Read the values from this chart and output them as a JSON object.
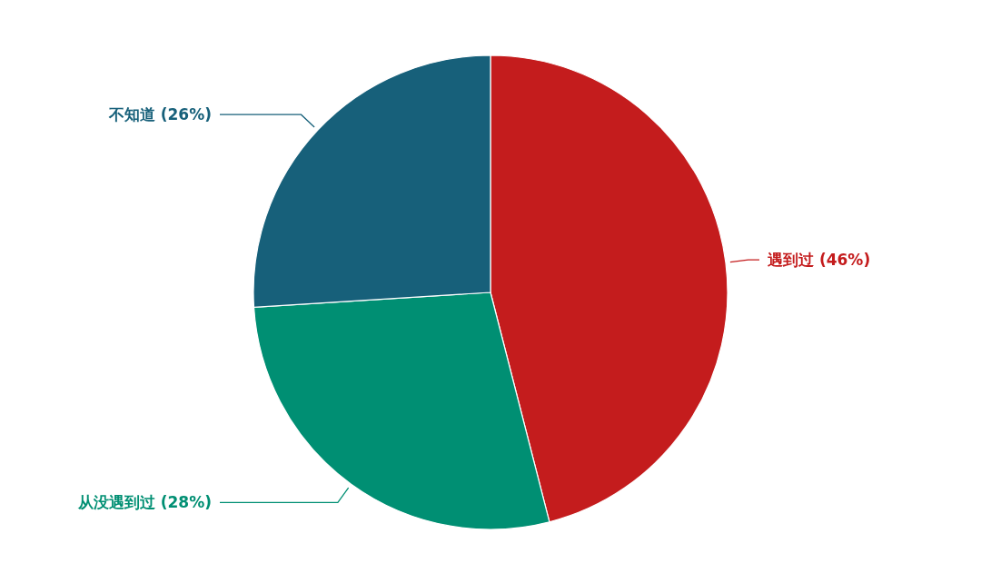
{
  "chart_data": {
    "type": "pie",
    "categories": [
      "遇到过",
      "从没遇到过",
      "不知道"
    ],
    "values": [
      46,
      28,
      26
    ],
    "value_labels": [
      "(46%)",
      "(28%)",
      "(26%)"
    ],
    "colors": [
      "#c41c1d",
      "#008f73",
      "#17607a"
    ]
  }
}
